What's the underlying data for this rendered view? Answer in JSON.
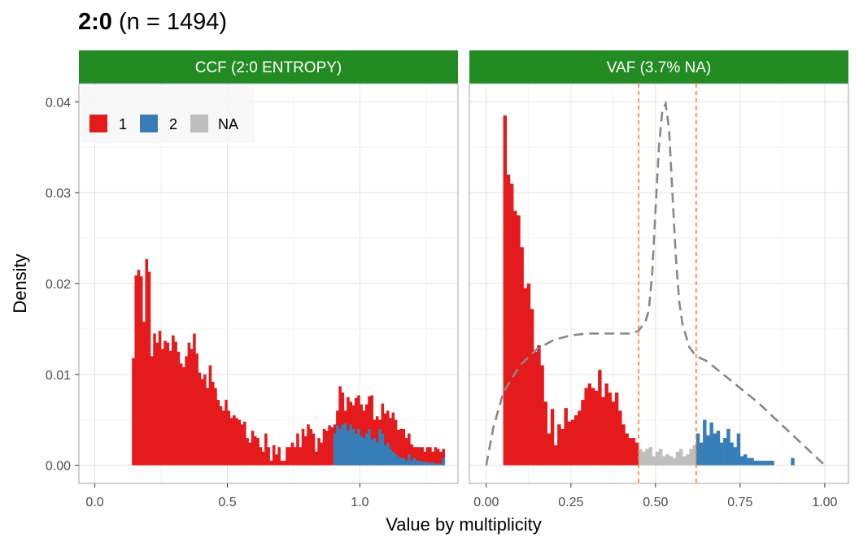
{
  "title": {
    "bold": "2:0",
    "rest": " (n = 1494)"
  },
  "xlabel": "Value by multiplicity",
  "ylabel": "Density",
  "colors": {
    "strip": "#228B22",
    "cluster_1": "#E41A1C",
    "cluster_2": "#377EB8",
    "cluster_NA": "#BEBEBE",
    "density_line": "#888888",
    "cutoff_line": "#FF7F27"
  },
  "legend": {
    "placement": "top-left inside left panel",
    "items": [
      {
        "label": "1",
        "color": "#E41A1C"
      },
      {
        "label": "2",
        "color": "#377EB8"
      },
      {
        "label": "NA",
        "color": "#BEBEBE"
      }
    ]
  },
  "y_ticks": [
    "0.00",
    "0.01",
    "0.02",
    "0.03",
    "0.04"
  ],
  "chart_data": [
    {
      "type": "bar",
      "strip": "CCF (2:0 ENTROPY)",
      "xlim": [
        -0.06,
        1.37
      ],
      "ylim": [
        -0.002,
        0.042
      ],
      "x_ticks": [
        0,
        0.5,
        1.0
      ],
      "x_tick_labels": [
        "0.0",
        "0.5",
        "1.0"
      ],
      "grid": true,
      "bin_width": 0.01,
      "series": [
        {
          "name": "1",
          "color": "#E41A1C",
          "x": [
            0.14,
            0.15,
            0.16,
            0.17,
            0.18,
            0.19,
            0.2,
            0.21,
            0.22,
            0.23,
            0.24,
            0.25,
            0.26,
            0.27,
            0.28,
            0.29,
            0.3,
            0.31,
            0.32,
            0.33,
            0.34,
            0.35,
            0.36,
            0.37,
            0.38,
            0.39,
            0.4,
            0.41,
            0.42,
            0.43,
            0.44,
            0.45,
            0.46,
            0.47,
            0.48,
            0.49,
            0.5,
            0.51,
            0.52,
            0.53,
            0.54,
            0.55,
            0.56,
            0.57,
            0.58,
            0.59,
            0.6,
            0.61,
            0.62,
            0.63,
            0.64,
            0.65,
            0.66,
            0.67,
            0.68,
            0.69,
            0.7,
            0.71,
            0.72,
            0.73,
            0.74,
            0.75,
            0.76,
            0.77,
            0.78,
            0.79,
            0.8,
            0.81,
            0.82,
            0.83,
            0.84,
            0.85,
            0.86,
            0.87,
            0.88,
            0.89,
            0.9,
            0.91,
            0.92,
            0.93,
            0.94,
            0.95,
            0.96,
            0.97,
            0.98,
            0.99,
            1.0,
            1.01,
            1.02,
            1.03,
            1.04,
            1.05,
            1.06,
            1.07,
            1.08,
            1.09,
            1.1,
            1.11,
            1.12,
            1.13,
            1.14,
            1.15,
            1.16,
            1.17,
            1.18,
            1.19,
            1.2,
            1.21,
            1.22,
            1.23,
            1.24,
            1.25,
            1.26,
            1.27,
            1.28,
            1.29,
            1.3,
            1.31
          ],
          "y": [
            0.0118,
            0.0209,
            0.0215,
            0.0208,
            0.0158,
            0.0227,
            0.0213,
            0.012,
            0.0145,
            0.0135,
            0.0148,
            0.0128,
            0.0137,
            0.0135,
            0.0126,
            0.0143,
            0.0136,
            0.0125,
            0.0112,
            0.0108,
            0.012,
            0.0135,
            0.0128,
            0.0145,
            0.0123,
            0.0102,
            0.0095,
            0.01,
            0.0085,
            0.011,
            0.0092,
            0.0085,
            0.0072,
            0.0065,
            0.006,
            0.0072,
            0.006,
            0.0052,
            0.0055,
            0.0052,
            0.005,
            0.0045,
            0.0048,
            0.003,
            0.0025,
            0.0038,
            0.0032,
            0.003,
            0.002,
            0.0015,
            0.0035,
            0.002,
            0.0005,
            0.0022,
            0.0012,
            0.002,
            0.0005,
            0.0005,
            0.002,
            0.002,
            0.0025,
            0.002,
            0.0035,
            0.002,
            0.004,
            0.0032,
            0.0045,
            0.004,
            0.0035,
            0.0015,
            0.003,
            0.0025,
            0.004,
            0.0038,
            0.0044,
            0.0042,
            0.0045,
            0.006,
            0.0087,
            0.008,
            0.006,
            0.0075,
            0.007,
            0.0066,
            0.0074,
            0.0077,
            0.0067,
            0.006,
            0.0067,
            0.0076,
            0.0077,
            0.005,
            0.0054,
            0.005,
            0.0068,
            0.0057,
            0.006,
            0.0052,
            0.0058,
            0.005,
            0.0039,
            0.004,
            0.004,
            0.003,
            0.0035,
            0.0023,
            0.002,
            0.002,
            0.002,
            0.002,
            0.0015,
            0.002,
            0.002,
            0.0015,
            0.002,
            0.0018,
            0.0015,
            0.0018
          ]
        },
        {
          "name": "2",
          "color": "#377EB8",
          "x": [
            0.9,
            0.91,
            0.92,
            0.93,
            0.94,
            0.95,
            0.96,
            0.97,
            0.98,
            0.99,
            1.0,
            1.01,
            1.02,
            1.03,
            1.04,
            1.05,
            1.06,
            1.07,
            1.08,
            1.09,
            1.1,
            1.11,
            1.12,
            1.13,
            1.14,
            1.15,
            1.16,
            1.17,
            1.18,
            1.19,
            1.2,
            1.21,
            1.22,
            1.23,
            1.24,
            1.25,
            1.26,
            1.27,
            1.28,
            1.29,
            1.3,
            1.31
          ],
          "y": [
            0.0035,
            0.0044,
            0.004,
            0.0045,
            0.0046,
            0.0038,
            0.0045,
            0.004,
            0.0035,
            0.004,
            0.0032,
            0.003,
            0.0035,
            0.004,
            0.0028,
            0.003,
            0.0025,
            0.004,
            0.0035,
            0.0022,
            0.0025,
            0.0018,
            0.0015,
            0.0012,
            0.001,
            0.0008,
            0.0008,
            0.0005,
            0.0012,
            0.0005,
            0.0008,
            0.0005,
            0.0005,
            0.0004,
            0.0004,
            0.0003,
            0.0003,
            0.0003,
            0.0002,
            0.0002,
            0.0002,
            0.0008
          ]
        }
      ]
    },
    {
      "type": "bar",
      "strip": "VAF (3.7% NA)",
      "xlim": [
        -0.05,
        1.07
      ],
      "ylim": [
        -0.002,
        0.042
      ],
      "x_ticks": [
        0,
        0.25,
        0.5,
        0.75,
        1.0
      ],
      "x_tick_labels": [
        "0.00",
        "0.25",
        "0.50",
        "0.75",
        "1.00"
      ],
      "grid": true,
      "bin_width": 0.01,
      "cutoffs": [
        0.45,
        0.62
      ],
      "series": [
        {
          "name": "1",
          "color": "#E41A1C",
          "x": [
            0.05,
            0.06,
            0.07,
            0.08,
            0.09,
            0.1,
            0.11,
            0.12,
            0.13,
            0.14,
            0.15,
            0.16,
            0.17,
            0.18,
            0.19,
            0.2,
            0.21,
            0.22,
            0.23,
            0.24,
            0.25,
            0.26,
            0.27,
            0.28,
            0.29,
            0.3,
            0.31,
            0.32,
            0.33,
            0.34,
            0.35,
            0.36,
            0.37,
            0.38,
            0.39,
            0.4,
            0.41,
            0.42,
            0.43,
            0.44
          ],
          "y": [
            0.0385,
            0.032,
            0.031,
            0.028,
            0.0275,
            0.024,
            0.0195,
            0.02,
            0.0172,
            0.0125,
            0.0132,
            0.011,
            0.007,
            0.0035,
            0.0062,
            0.0022,
            0.0045,
            0.004,
            0.0063,
            0.0048,
            0.005,
            0.0055,
            0.006,
            0.0072,
            0.0085,
            0.009,
            0.0085,
            0.0082,
            0.0105,
            0.0075,
            0.009,
            0.008,
            0.007,
            0.008,
            0.006,
            0.0045,
            0.0035,
            0.003,
            0.003,
            0.0025
          ]
        },
        {
          "name": "NA",
          "color": "#BEBEBE",
          "x": [
            0.45,
            0.46,
            0.47,
            0.48,
            0.49,
            0.5,
            0.51,
            0.52,
            0.53,
            0.54,
            0.55,
            0.56,
            0.57,
            0.58,
            0.59,
            0.6,
            0.61
          ],
          "y": [
            0.0018,
            0.0015,
            0.0018,
            0.002,
            0.001,
            0.0015,
            0.0018,
            0.001,
            0.0012,
            0.001,
            0.0008,
            0.0015,
            0.0018,
            0.001,
            0.0012,
            0.0018,
            0.0022
          ]
        },
        {
          "name": "2",
          "color": "#377EB8",
          "x": [
            0.62,
            0.63,
            0.64,
            0.65,
            0.66,
            0.67,
            0.68,
            0.69,
            0.7,
            0.71,
            0.72,
            0.73,
            0.74,
            0.75,
            0.76,
            0.77,
            0.78,
            0.79,
            0.8,
            0.81,
            0.82,
            0.83,
            0.84,
            0.9
          ],
          "y": [
            0.0035,
            0.0025,
            0.005,
            0.0033,
            0.0047,
            0.0035,
            0.0038,
            0.0025,
            0.003,
            0.004,
            0.0025,
            0.002,
            0.0035,
            0.001,
            0.0012,
            0.0008,
            0.0008,
            0.0005,
            0.0005,
            0.0005,
            0.0005,
            0.0005,
            0.0005,
            0.0008
          ]
        }
      ],
      "density_line": {
        "x": [
          0.0,
          0.02,
          0.05,
          0.1,
          0.15,
          0.2,
          0.25,
          0.3,
          0.35,
          0.4,
          0.43,
          0.45,
          0.47,
          0.48,
          0.49,
          0.5,
          0.51,
          0.52,
          0.53,
          0.54,
          0.55,
          0.56,
          0.57,
          0.58,
          0.6,
          0.62,
          0.65,
          0.7,
          0.8,
          0.9,
          1.0
        ],
        "y": [
          0.0,
          0.004,
          0.008,
          0.011,
          0.0128,
          0.0138,
          0.0143,
          0.0145,
          0.0145,
          0.0145,
          0.0145,
          0.0148,
          0.0158,
          0.017,
          0.021,
          0.028,
          0.035,
          0.039,
          0.0398,
          0.037,
          0.03,
          0.023,
          0.018,
          0.0155,
          0.013,
          0.012,
          0.0115,
          0.01,
          0.007,
          0.0035,
          0.0
        ]
      }
    }
  ]
}
